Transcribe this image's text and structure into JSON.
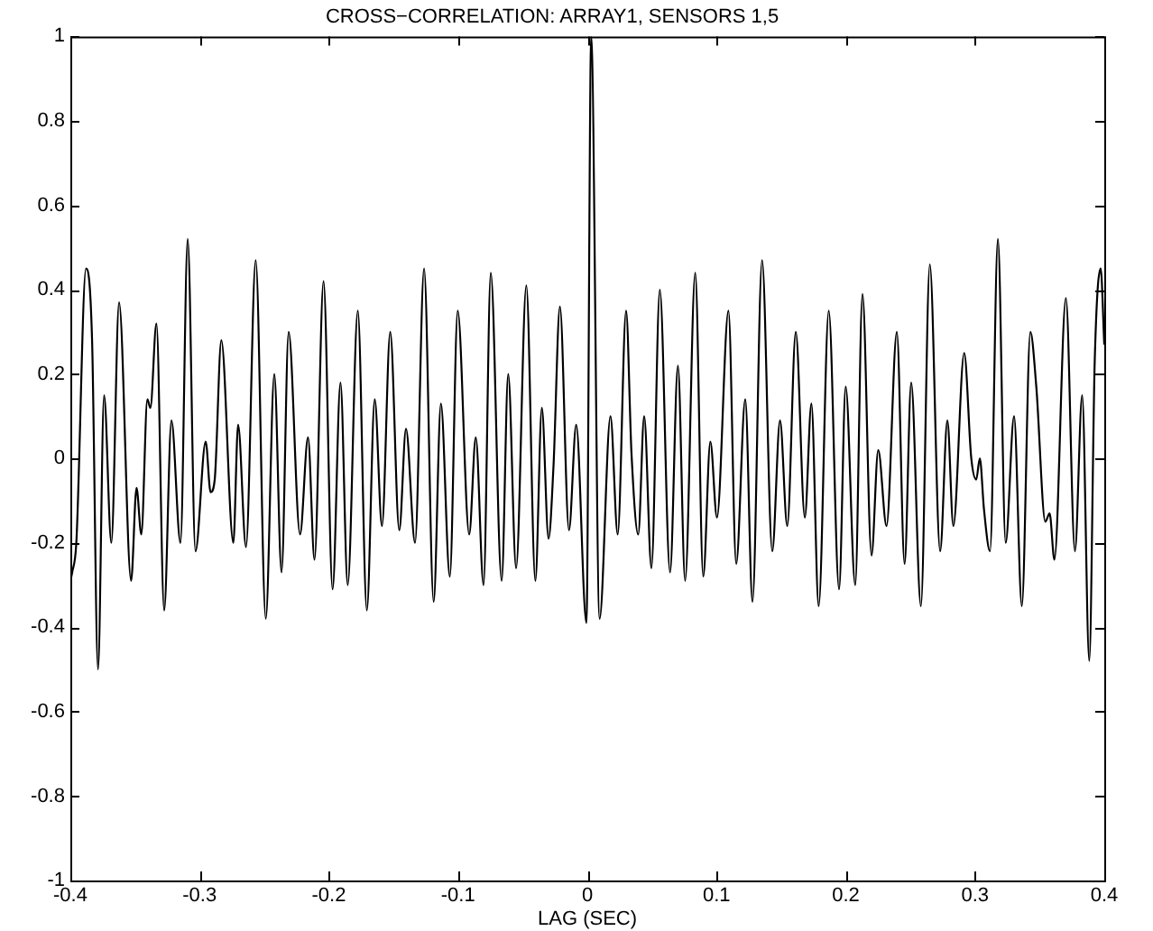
{
  "chart_data": {
    "type": "line",
    "title": "CROSS−CORRELATION: ARRAY1, SENSORS 1,5",
    "xlabel": "LAG (SEC)",
    "xlim": [
      -0.4,
      0.4
    ],
    "xticks": [
      -0.4,
      -0.3,
      -0.2,
      -0.1,
      0,
      0.1,
      0.2,
      0.3,
      0.4
    ],
    "ylim": [
      -1,
      1
    ],
    "yticks": [
      -1,
      -0.8,
      -0.6,
      -0.4,
      -0.2,
      0,
      0.2,
      0.4,
      0.6,
      0.8,
      1
    ],
    "grid": false,
    "legend": false,
    "marker": "none",
    "line_style": "solid",
    "series": [
      {
        "color": "#000000",
        "x": [
          -0.4,
          -0.3986,
          -0.3954,
          -0.3879,
          -0.3832,
          -0.3786,
          -0.3739,
          -0.3683,
          -0.3623,
          -0.353,
          -0.3488,
          -0.3451,
          -0.3404,
          -0.3381,
          -0.3334,
          -0.3274,
          -0.3218,
          -0.3148,
          -0.3092,
          -0.3032,
          -0.2953,
          -0.2915,
          -0.2883,
          -0.2832,
          -0.2739,
          -0.2702,
          -0.2641,
          -0.2566,
          -0.2488,
          -0.2422,
          -0.2366,
          -0.2311,
          -0.2223,
          -0.2161,
          -0.2111,
          -0.2041,
          -0.1971,
          -0.191,
          -0.1854,
          -0.1776,
          -0.1706,
          -0.1645,
          -0.1589,
          -0.1525,
          -0.1455,
          -0.1403,
          -0.1333,
          -0.1263,
          -0.1189,
          -0.1133,
          -0.1064,
          -0.1003,
          -0.0914,
          -0.0863,
          -0.0803,
          -0.0747,
          -0.0663,
          -0.0612,
          -0.0551,
          -0.0472,
          -0.0402,
          -0.0352,
          -0.03,
          -0.0262,
          -0.0212,
          -0.0142,
          -0.0086,
          -0.0007,
          0.003,
          0.0095,
          0.0179,
          0.0235,
          0.03,
          0.0342,
          0.0394,
          0.044,
          0.0496,
          0.0561,
          0.064,
          0.0701,
          0.0757,
          0.0835,
          0.0897,
          0.0952,
          0.1003,
          0.1092,
          0.1152,
          0.1222,
          0.1278,
          0.1352,
          0.1431,
          0.1491,
          0.1547,
          0.1613,
          0.1683,
          0.1734,
          0.179,
          0.1868,
          0.1948,
          0.1999,
          0.2073,
          0.2129,
          0.2199,
          0.2251,
          0.2315,
          0.2395,
          0.2455,
          0.2506,
          0.2581,
          0.265,
          0.273,
          0.2786,
          0.2832,
          0.2916,
          0.2971,
          0.3009,
          0.3037,
          0.3069,
          0.3116,
          0.3177,
          0.3237,
          0.3302,
          0.3362,
          0.3428,
          0.3474,
          0.3544,
          0.3577,
          0.3614,
          0.3703,
          0.3773,
          0.3829,
          0.3884,
          0.3926,
          0.3972,
          0.4
        ],
        "values": [
          -0.29,
          -0.27,
          -0.2,
          0.45,
          0.28,
          -0.5,
          0.15,
          -0.2,
          0.37,
          -0.29,
          -0.07,
          -0.18,
          0.14,
          0.12,
          0.32,
          -0.36,
          0.09,
          -0.2,
          0.52,
          -0.22,
          0.04,
          -0.08,
          -0.05,
          0.28,
          -0.2,
          0.08,
          -0.21,
          0.47,
          -0.38,
          0.2,
          -0.27,
          0.3,
          -0.18,
          0.05,
          -0.24,
          0.42,
          -0.31,
          0.18,
          -0.3,
          0.35,
          -0.36,
          0.14,
          -0.16,
          0.3,
          -0.17,
          0.07,
          -0.2,
          0.45,
          -0.34,
          0.13,
          -0.28,
          0.35,
          -0.18,
          0.05,
          -0.3,
          0.44,
          -0.29,
          0.2,
          -0.26,
          0.41,
          -0.29,
          0.12,
          -0.19,
          -0.02,
          0.36,
          -0.17,
          0.08,
          -0.39,
          1,
          -0.38,
          0.1,
          -0.18,
          0.35,
          0.01,
          -0.18,
          0.1,
          -0.26,
          0.4,
          -0.27,
          0.22,
          -0.29,
          0.44,
          -0.28,
          0.04,
          -0.14,
          0.35,
          -0.25,
          0.14,
          -0.34,
          0.47,
          -0.22,
          0.09,
          -0.16,
          0.3,
          -0.14,
          0.13,
          -0.35,
          0.35,
          -0.31,
          0.17,
          -0.3,
          0.39,
          -0.23,
          0.02,
          -0.16,
          0.3,
          -0.25,
          0.18,
          -0.35,
          0.46,
          -0.22,
          0.09,
          -0.16,
          0.25,
          0,
          -0.05,
          0,
          -0.12,
          -0.22,
          0.52,
          -0.2,
          0.1,
          -0.35,
          0.3,
          0.17,
          -0.15,
          -0.13,
          -0.24,
          0.38,
          -0.22,
          0.15,
          -0.48,
          0.23,
          0.45,
          0.27
        ]
      }
    ]
  }
}
